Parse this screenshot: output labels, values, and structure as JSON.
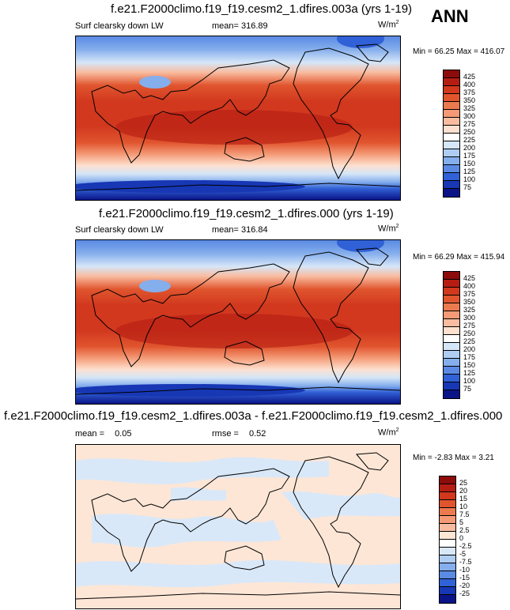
{
  "season": "ANN",
  "panels": [
    {
      "title": "f.e21.F2000climo.f19_f19.cesm2_1.dfires.003a (yrs 1-19)",
      "variable": "Surf clearsky down LW",
      "mean_label": "mean=",
      "mean_value": "316.89",
      "units": "W/m",
      "units_exp": "2",
      "min_label": "Min =",
      "min_value": "66.25",
      "max_label": "Max =",
      "max_value": "416.07",
      "levels": [
        "425",
        "400",
        "375",
        "350",
        "325",
        "300",
        "275",
        "250",
        "225",
        "200",
        "175",
        "150",
        "125",
        "100",
        "75"
      ]
    },
    {
      "title": "f.e21.F2000climo.f19_f19.cesm2_1.dfires.000 (yrs 1-19)",
      "variable": "Surf clearsky down LW",
      "mean_label": "mean=",
      "mean_value": "316.84",
      "units": "W/m",
      "units_exp": "2",
      "min_label": "Min =",
      "min_value": "66.29",
      "max_label": "Max =",
      "max_value": "415.94",
      "levels": [
        "425",
        "400",
        "375",
        "350",
        "325",
        "300",
        "275",
        "250",
        "225",
        "200",
        "175",
        "150",
        "125",
        "100",
        "75"
      ]
    },
    {
      "title": "f.e21.F2000climo.f19_f19.cesm2_1.dfires.003a - f.e21.F2000climo.f19_f19.cesm2_1.dfires.000",
      "mean_label": "mean =",
      "mean_value": "0.05",
      "rmse_label": "rmse =",
      "rmse_value": "0.52",
      "units": "W/m",
      "units_exp": "2",
      "min_label": "Min =",
      "min_value": "-2.83",
      "max_label": "Max =",
      "max_value": "3.21",
      "levels": [
        "25",
        "20",
        "15",
        "10",
        "7.5",
        "5",
        "2.5",
        "0",
        "-2.5",
        "-5",
        "-7.5",
        "-10",
        "-15",
        "-20",
        "-25"
      ]
    }
  ],
  "colors": {
    "abs_scale": [
      "#8c0b0b",
      "#b61d12",
      "#d1381e",
      "#e0552e",
      "#ec7a4f",
      "#f49a76",
      "#f9bca0",
      "#fde0cf",
      "#ffffff",
      "#d5e6f8",
      "#afcdf3",
      "#85aeec",
      "#5a8ae3",
      "#3161d6",
      "#1737b5",
      "#0a1487"
    ],
    "diff_scale": [
      "#8c0b0b",
      "#b61d12",
      "#d1381e",
      "#e0552e",
      "#ec7a4f",
      "#f49a76",
      "#f9bca0",
      "#fde6d6",
      "#ffffff",
      "#d9e8f8",
      "#afcdf3",
      "#85aeec",
      "#5a8ae3",
      "#3161d6",
      "#1737b5",
      "#0a1487"
    ]
  }
}
